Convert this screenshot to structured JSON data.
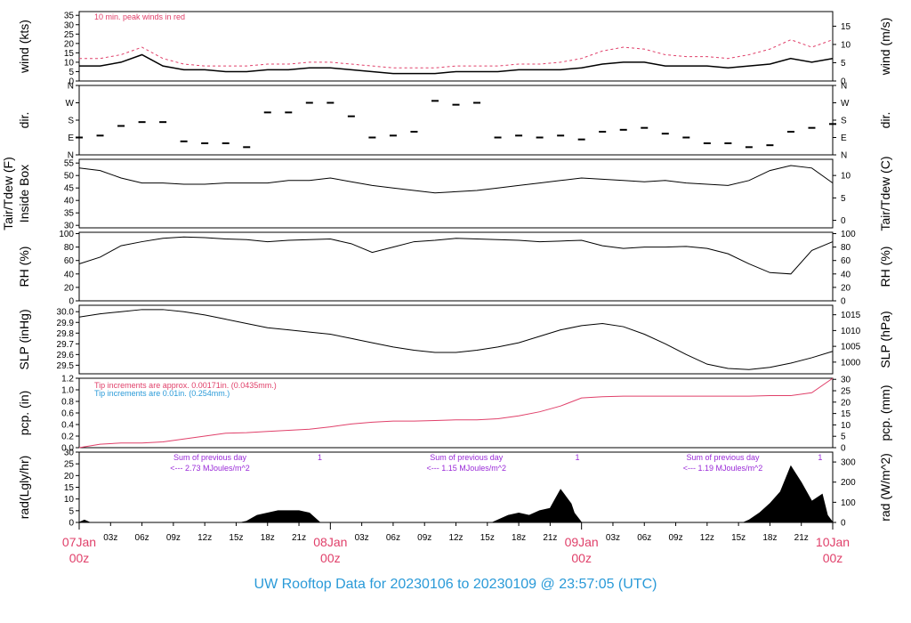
{
  "title": "UW Rooftop Data for 20230106  to  20230109 @ 23:57:05  (UTC)",
  "colors": {
    "accent_red": "#e0406a",
    "accent_blue": "#2a9ad8",
    "accent_purple": "#9a2ad8"
  },
  "x_axis": {
    "hour_ticks": [
      "03z",
      "06z",
      "09z",
      "12z",
      "15z",
      "18z",
      "21z",
      "03z",
      "06z",
      "09z",
      "12z",
      "15z",
      "18z",
      "21z",
      "03z",
      "06z",
      "09z",
      "12z",
      "15z",
      "18z",
      "21z"
    ],
    "hour_values": [
      3,
      6,
      9,
      12,
      15,
      18,
      21,
      27,
      30,
      33,
      36,
      39,
      42,
      45,
      51,
      54,
      57,
      60,
      63,
      66,
      69
    ],
    "date_ticks": [
      {
        "date": "07Jan",
        "hour": "00z",
        "x": 0
      },
      {
        "date": "08Jan",
        "hour": "00z",
        "x": 24
      },
      {
        "date": "09Jan",
        "hour": "00z",
        "x": 48
      },
      {
        "date": "10Jan",
        "hour": "00z",
        "x": 72
      }
    ],
    "xlim": [
      0,
      72
    ]
  },
  "chart_data": [
    {
      "type": "line",
      "id": "wind",
      "ylabel_left": "wind (kts)",
      "ylabel_right": "wind (m/s)",
      "ylim": [
        0,
        37
      ],
      "left_ticks": [
        0,
        5,
        10,
        15,
        20,
        25,
        30,
        35
      ],
      "right_ylim": [
        0,
        19
      ],
      "right_ticks": [
        0,
        5,
        10,
        15
      ],
      "annotation": "10 min. peak winds in red",
      "x": [
        0,
        2,
        4,
        6,
        8,
        10,
        12,
        14,
        16,
        18,
        20,
        22,
        24,
        26,
        28,
        30,
        32,
        34,
        36,
        38,
        40,
        42,
        44,
        46,
        48,
        50,
        52,
        54,
        56,
        58,
        60,
        62,
        64,
        66,
        68,
        70,
        72
      ],
      "series": [
        {
          "values": [
            8,
            8,
            10,
            14,
            8,
            6,
            6,
            5,
            5,
            6,
            6,
            7,
            7,
            6,
            5,
            4,
            4,
            4,
            5,
            5,
            5,
            6,
            6,
            6,
            7,
            9,
            10,
            10,
            8,
            8,
            8,
            7,
            8,
            9,
            12,
            10,
            12
          ]
        },
        {
          "values": [
            12,
            12,
            14,
            18,
            12,
            9,
            8,
            8,
            8,
            9,
            9,
            10,
            10,
            9,
            8,
            7,
            7,
            7,
            8,
            8,
            8,
            9,
            9,
            10,
            12,
            16,
            18,
            17,
            14,
            13,
            13,
            12,
            14,
            17,
            22,
            18,
            22
          ]
        }
      ]
    },
    {
      "type": "scatter",
      "id": "dir",
      "ylabel_left": "dir.",
      "ylabel_right": "dir.",
      "left_ticks": [
        "N",
        "W",
        "S",
        "E",
        "N"
      ],
      "right_ticks": [
        "N",
        "W",
        "S",
        "E",
        "N"
      ],
      "ylim": [
        0,
        360
      ],
      "x": [
        0,
        2,
        4,
        6,
        8,
        10,
        12,
        14,
        16,
        18,
        20,
        22,
        24,
        26,
        28,
        30,
        32,
        34,
        36,
        38,
        40,
        42,
        44,
        46,
        48,
        50,
        52,
        54,
        56,
        58,
        60,
        62,
        64,
        66,
        68,
        70,
        72
      ],
      "values": [
        90,
        100,
        150,
        170,
        170,
        70,
        60,
        60,
        40,
        220,
        220,
        270,
        270,
        200,
        90,
        100,
        120,
        280,
        260,
        270,
        90,
        100,
        90,
        100,
        80,
        120,
        130,
        140,
        110,
        90,
        60,
        60,
        40,
        50,
        120,
        140,
        160
      ]
    },
    {
      "type": "line",
      "id": "temp",
      "ylabel_left": "Tair/Tdew (F)",
      "ylabel_left2": "Inside Box",
      "ylabel_right": "Tair/Tdew (C)",
      "ylim": [
        29,
        56.5
      ],
      "left_ticks": [
        30,
        35,
        40,
        45,
        50,
        55
      ],
      "right_ylim": [
        -1.67,
        13.6
      ],
      "right_ticks": [
        0,
        5,
        10
      ],
      "x": [
        0,
        2,
        4,
        6,
        8,
        10,
        12,
        14,
        16,
        18,
        20,
        22,
        24,
        26,
        28,
        30,
        32,
        34,
        36,
        38,
        40,
        42,
        44,
        46,
        48,
        50,
        52,
        54,
        56,
        58,
        60,
        62,
        64,
        66,
        68,
        70,
        72
      ],
      "values": [
        53,
        52,
        49,
        47,
        47,
        46.5,
        46.5,
        47,
        47,
        47,
        48,
        48,
        49,
        47.5,
        46,
        45,
        44,
        43,
        43.5,
        44,
        45,
        46,
        47,
        48,
        49,
        48.5,
        48,
        47.5,
        48,
        47,
        46.5,
        46,
        48,
        52,
        54,
        53,
        47
      ]
    },
    {
      "type": "line",
      "id": "rh",
      "ylabel_left": "RH (%)",
      "ylabel_right": "RH (%)",
      "ylim": [
        0,
        102
      ],
      "left_ticks": [
        0,
        20,
        40,
        60,
        80,
        100
      ],
      "right_ticks": [
        0,
        20,
        40,
        60,
        80,
        100
      ],
      "x": [
        0,
        2,
        4,
        6,
        8,
        10,
        12,
        14,
        16,
        18,
        20,
        22,
        24,
        26,
        28,
        30,
        32,
        34,
        36,
        38,
        40,
        42,
        44,
        46,
        48,
        50,
        52,
        54,
        56,
        58,
        60,
        62,
        64,
        66,
        68,
        70,
        72
      ],
      "values": [
        55,
        65,
        82,
        88,
        93,
        95,
        94,
        92,
        91,
        88,
        90,
        91,
        92,
        85,
        72,
        80,
        88,
        90,
        93,
        92,
        91,
        90,
        88,
        89,
        90,
        82,
        78,
        80,
        80,
        81,
        78,
        70,
        55,
        42,
        40,
        75,
        88
      ]
    },
    {
      "type": "line",
      "id": "slp",
      "ylabel_left": "SLP (inHg)",
      "ylabel_right": "SLP (hPa)",
      "ylim": [
        29.42,
        30.06
      ],
      "left_ticks": [
        29.5,
        29.6,
        29.7,
        29.8,
        29.9,
        30.0
      ],
      "right_ylim": [
        996.3,
        1018
      ],
      "right_ticks": [
        1000,
        1005,
        1010,
        1015
      ],
      "x": [
        0,
        2,
        4,
        6,
        8,
        10,
        12,
        14,
        16,
        18,
        20,
        22,
        24,
        26,
        28,
        30,
        32,
        34,
        36,
        38,
        40,
        42,
        44,
        46,
        48,
        50,
        52,
        54,
        56,
        58,
        60,
        62,
        64,
        66,
        68,
        70,
        72
      ],
      "values": [
        29.95,
        29.98,
        30.0,
        30.02,
        30.02,
        30.0,
        29.97,
        29.93,
        29.89,
        29.85,
        29.83,
        29.81,
        29.79,
        29.75,
        29.71,
        29.67,
        29.64,
        29.62,
        29.62,
        29.64,
        29.67,
        29.71,
        29.77,
        29.83,
        29.87,
        29.89,
        29.86,
        29.79,
        29.7,
        29.6,
        29.51,
        29.47,
        29.46,
        29.48,
        29.52,
        29.57,
        29.63
      ]
    },
    {
      "type": "line",
      "id": "pcp",
      "ylabel_left": "pcp. (in)",
      "ylabel_right": "pcp. (mm)",
      "ylim": [
        0,
        1.2
      ],
      "left_ticks": [
        0,
        0.2,
        0.4,
        0.6,
        0.8,
        1.0,
        1.2
      ],
      "right_ylim": [
        0,
        30.48
      ],
      "right_ticks": [
        0,
        5,
        10,
        15,
        20,
        25,
        30
      ],
      "note_red": "Tip increments are approx. 0.00171in. (0.0435mm.)",
      "note_blue": "Tip increments are 0.01in. (0.254mm.)",
      "x": [
        0,
        2,
        4,
        6,
        8,
        10,
        12,
        14,
        16,
        18,
        20,
        22,
        24,
        26,
        28,
        30,
        32,
        34,
        36,
        38,
        40,
        42,
        44,
        46,
        48,
        50,
        52,
        54,
        56,
        58,
        60,
        62,
        64,
        66,
        68,
        70,
        72
      ],
      "values": [
        0.0,
        0.06,
        0.08,
        0.08,
        0.1,
        0.15,
        0.2,
        0.25,
        0.26,
        0.28,
        0.3,
        0.32,
        0.36,
        0.41,
        0.44,
        0.46,
        0.46,
        0.47,
        0.48,
        0.48,
        0.5,
        0.55,
        0.62,
        0.72,
        0.86,
        0.88,
        0.89,
        0.89,
        0.89,
        0.89,
        0.89,
        0.89,
        0.89,
        0.9,
        0.9,
        0.95,
        1.2
      ]
    },
    {
      "type": "area",
      "id": "rad",
      "ylabel_left": "rad(Lgly/hr)",
      "ylabel_right": "rad (W/m^2)",
      "ylim": [
        0,
        30
      ],
      "left_ticks": [
        0,
        5,
        10,
        15,
        20,
        25,
        30
      ],
      "right_ylim": [
        0,
        349
      ],
      "right_ticks": [
        0,
        100,
        200,
        300
      ],
      "daily_sums": [
        {
          "x": 12.5,
          "line1": "Sum of previous day",
          "line2": "<--- 2.73 MJoules/m^2"
        },
        {
          "x": 37,
          "line1": "Sum of previous day",
          "line2": "<--- 1.15 MJoules/m^2"
        },
        {
          "x": 61.5,
          "line1": "Sum of previous day",
          "line2": "<--- 1.19 MJoules/m^2"
        }
      ],
      "sunset_marks": [
        23,
        47.6,
        70.8
      ],
      "sunset_label": "1",
      "x": [
        0,
        0.5,
        1,
        15.5,
        16,
        17,
        18,
        19,
        20,
        21,
        22,
        22.5,
        23,
        39.5,
        40,
        41,
        42,
        43,
        44,
        45,
        45.5,
        46,
        47,
        47.3,
        48,
        63.5,
        64,
        65,
        66,
        67,
        68,
        69,
        70,
        71,
        71.5,
        72
      ],
      "values": [
        0,
        1,
        0,
        0,
        0.5,
        3,
        4,
        5,
        5,
        5,
        4,
        2,
        0,
        0,
        1,
        3,
        4,
        3,
        5,
        6,
        10,
        14,
        8,
        4,
        0,
        0,
        1,
        4,
        8,
        13,
        24,
        17,
        9,
        12,
        3,
        0
      ]
    }
  ]
}
